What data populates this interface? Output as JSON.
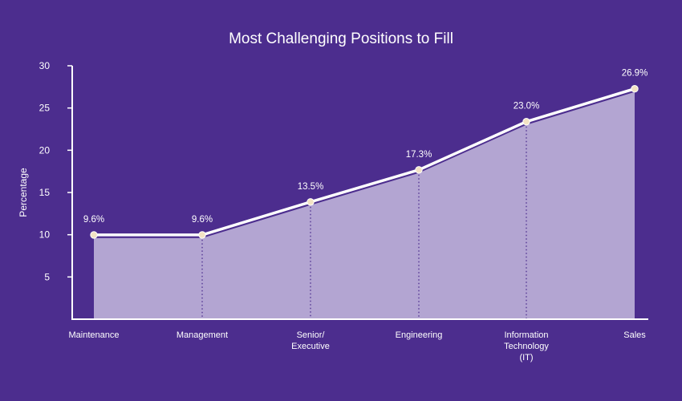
{
  "colors": {
    "background": "#4c2d8e",
    "area_fill": "#b3a5d2",
    "line": "#ffffff",
    "marker": "#f3e3c4",
    "drop_line": "#4c2d8e",
    "axis": "#ffffff"
  },
  "chart_data": {
    "type": "area",
    "title": "Most Challenging Positions to Fill",
    "ylabel": "Percentage",
    "xlabel": "",
    "ylim": [
      0,
      30
    ],
    "yticks": [
      5,
      10,
      15,
      20,
      25,
      30
    ],
    "grid": false,
    "categories": [
      {
        "lines": [
          "Maintenance"
        ]
      },
      {
        "lines": [
          "Management"
        ]
      },
      {
        "lines": [
          "Senior/",
          "Executive"
        ]
      },
      {
        "lines": [
          "Engineering"
        ]
      },
      {
        "lines": [
          "Information",
          "Technology",
          "(IT)"
        ]
      },
      {
        "lines": [
          "Sales"
        ]
      }
    ],
    "series": [
      {
        "values": [
          9.6,
          9.6,
          13.5,
          17.3,
          23.0,
          26.9
        ],
        "labels": [
          "9.6%",
          "9.6%",
          "13.5%",
          "17.3%",
          "23.0%",
          "26.9%"
        ]
      }
    ]
  }
}
